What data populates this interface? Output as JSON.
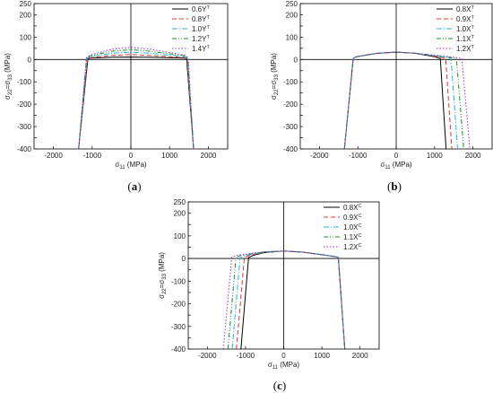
{
  "chart_data": [
    {
      "type": "line",
      "caption": "(a)",
      "xlabel": "σ11 (MPa)",
      "ylabel": "σ22=σ33 (MPa)",
      "xlim": [
        -2500,
        2500
      ],
      "ylim": [
        -400,
        250
      ],
      "xticks": [
        "-2000",
        "-1000",
        "0",
        "1000",
        "2000"
      ],
      "yticks": [
        "250",
        "200",
        "150",
        "100",
        "50",
        "0",
        "-50",
        "-100",
        "-150",
        "-200",
        "-250",
        "-300",
        "-350",
        "-400"
      ],
      "legend_position": "top-right",
      "series": [
        {
          "name": "0.6Y",
          "sup": "T",
          "color": "#000000",
          "dash": "",
          "points": [
            [
              -1350,
              -400
            ],
            [
              -1110,
              4
            ],
            [
              -1050,
              6
            ],
            [
              -500,
              10
            ],
            [
              0,
              11
            ],
            [
              500,
              10
            ],
            [
              1400,
              6
            ],
            [
              1440,
              4
            ],
            [
              1620,
              -400
            ]
          ]
        },
        {
          "name": "0.8Y",
          "sup": "T",
          "color": "#e8332a",
          "dash": "5,3",
          "points": [
            [
              -1350,
              -400
            ],
            [
              -1120,
              5
            ],
            [
              -1050,
              8
            ],
            [
              -500,
              18
            ],
            [
              0,
              22
            ],
            [
              500,
              18
            ],
            [
              1400,
              8
            ],
            [
              1450,
              5
            ],
            [
              1620,
              -400
            ]
          ]
        },
        {
          "name": "1.0Y",
          "sup": "T",
          "color": "#26b4e6",
          "dash": "6,2,1,2",
          "points": [
            [
              -1350,
              -400
            ],
            [
              -1130,
              6
            ],
            [
              -1050,
              12
            ],
            [
              -500,
              28
            ],
            [
              0,
              33
            ],
            [
              500,
              28
            ],
            [
              1400,
              12
            ],
            [
              1460,
              6
            ],
            [
              1620,
              -400
            ]
          ]
        },
        {
          "name": "1.2Y",
          "sup": "T",
          "color": "#1a8c2a",
          "dash": "5,2,1,2,1,2",
          "points": [
            [
              -1350,
              -400
            ],
            [
              -1140,
              7
            ],
            [
              -1050,
              16
            ],
            [
              -500,
              37
            ],
            [
              0,
              44
            ],
            [
              500,
              37
            ],
            [
              1400,
              16
            ],
            [
              1470,
              7
            ],
            [
              1620,
              -400
            ]
          ]
        },
        {
          "name": "1.4Y",
          "sup": "T",
          "color": "#9b30d9",
          "dash": "1.5,2",
          "points": [
            [
              -1350,
              -400
            ],
            [
              -1150,
              8
            ],
            [
              -1050,
              20
            ],
            [
              -500,
              46
            ],
            [
              0,
              54
            ],
            [
              500,
              46
            ],
            [
              1400,
              20
            ],
            [
              1480,
              8
            ],
            [
              1620,
              -400
            ]
          ]
        }
      ]
    },
    {
      "type": "line",
      "caption": "(b)",
      "xlabel": "σ11 (MPa)",
      "ylabel": "σ22=σ33 (MPa)",
      "xlim": [
        -2500,
        2500
      ],
      "ylim": [
        -400,
        250
      ],
      "xticks": [
        "-2000",
        "-1000",
        "0",
        "1000",
        "2000"
      ],
      "yticks": [
        "250",
        "200",
        "150",
        "100",
        "50",
        "0",
        "-50",
        "-100",
        "-150",
        "-200",
        "-250",
        "-300",
        "-350",
        "-400"
      ],
      "legend_position": "top-right",
      "series": [
        {
          "name": "0.8X",
          "sup": "T",
          "color": "#000000",
          "dash": "",
          "points": [
            [
              -1350,
              -400
            ],
            [
              -1120,
              5
            ],
            [
              -1050,
              12
            ],
            [
              -500,
              28
            ],
            [
              0,
              33
            ],
            [
              500,
              28
            ],
            [
              1000,
              12
            ],
            [
              1150,
              5
            ],
            [
              1300,
              -400
            ]
          ]
        },
        {
          "name": "0.9X",
          "sup": "T",
          "color": "#e8332a",
          "dash": "5,3",
          "points": [
            [
              -1350,
              -400
            ],
            [
              -1120,
              5
            ],
            [
              -1050,
              12
            ],
            [
              -500,
              28
            ],
            [
              0,
              33
            ],
            [
              500,
              28
            ],
            [
              1100,
              12
            ],
            [
              1290,
              5
            ],
            [
              1450,
              -400
            ]
          ]
        },
        {
          "name": "1.0X",
          "sup": "T",
          "color": "#26b4e6",
          "dash": "6,2,1,2",
          "points": [
            [
              -1350,
              -400
            ],
            [
              -1120,
              5
            ],
            [
              -1050,
              12
            ],
            [
              -500,
              28
            ],
            [
              0,
              33
            ],
            [
              500,
              28
            ],
            [
              1200,
              12
            ],
            [
              1430,
              5
            ],
            [
              1600,
              -400
            ]
          ]
        },
        {
          "name": "1.1X",
          "sup": "T",
          "color": "#1a8c2a",
          "dash": "5,2,1,2,1,2",
          "points": [
            [
              -1350,
              -400
            ],
            [
              -1120,
              5
            ],
            [
              -1050,
              12
            ],
            [
              -500,
              28
            ],
            [
              0,
              33
            ],
            [
              500,
              28
            ],
            [
              1300,
              12
            ],
            [
              1570,
              5
            ],
            [
              1760,
              -400
            ]
          ]
        },
        {
          "name": "1.2X",
          "sup": "T",
          "color": "#9b30d9",
          "dash": "1.5,2",
          "points": [
            [
              -1350,
              -400
            ],
            [
              -1120,
              5
            ],
            [
              -1050,
              12
            ],
            [
              -500,
              28
            ],
            [
              0,
              33
            ],
            [
              500,
              28
            ],
            [
              1400,
              12
            ],
            [
              1710,
              5
            ],
            [
              1920,
              -400
            ]
          ]
        }
      ]
    },
    {
      "type": "line",
      "caption": "(c)",
      "xlabel": "σ11 (MPa)",
      "ylabel": "σ22=σ33 (MPa)",
      "xlim": [
        -2500,
        2500
      ],
      "ylim": [
        -400,
        250
      ],
      "xticks": [
        "-2000",
        "-1000",
        "0",
        "1000",
        "2000"
      ],
      "yticks": [
        "250",
        "200",
        "150",
        "100",
        "50",
        "0",
        "-50",
        "-100",
        "-150",
        "-200",
        "-250",
        "-300",
        "-350",
        "-400"
      ],
      "legend_position": "top-right",
      "series": [
        {
          "name": "0.8X",
          "sup": "C",
          "color": "#000000",
          "dash": "",
          "points": [
            [
              -1120,
              -400
            ],
            [
              -920,
              4
            ],
            [
              -800,
              14
            ],
            [
              -500,
              26
            ],
            [
              0,
              33
            ],
            [
              500,
              28
            ],
            [
              1200,
              12
            ],
            [
              1430,
              5
            ],
            [
              1600,
              -400
            ]
          ]
        },
        {
          "name": "0.9X",
          "sup": "C",
          "color": "#e8332a",
          "dash": "5,3",
          "points": [
            [
              -1240,
              -400
            ],
            [
              -1030,
              4
            ],
            [
              -900,
              14
            ],
            [
              -500,
              27
            ],
            [
              0,
              33
            ],
            [
              500,
              28
            ],
            [
              1200,
              12
            ],
            [
              1430,
              5
            ],
            [
              1600,
              -400
            ]
          ]
        },
        {
          "name": "1.0X",
          "sup": "C",
          "color": "#26b4e6",
          "dash": "6,2,1,2",
          "points": [
            [
              -1350,
              -400
            ],
            [
              -1140,
              5
            ],
            [
              -1000,
              14
            ],
            [
              -500,
              28
            ],
            [
              0,
              33
            ],
            [
              500,
              28
            ],
            [
              1200,
              12
            ],
            [
              1430,
              5
            ],
            [
              1600,
              -400
            ]
          ]
        },
        {
          "name": "1.1X",
          "sup": "C",
          "color": "#1a8c2a",
          "dash": "5,2,1,2,1,2",
          "points": [
            [
              -1460,
              -400
            ],
            [
              -1250,
              5
            ],
            [
              -1100,
              15
            ],
            [
              -500,
              29
            ],
            [
              0,
              33
            ],
            [
              500,
              28
            ],
            [
              1200,
              12
            ],
            [
              1430,
              5
            ],
            [
              1600,
              -400
            ]
          ]
        },
        {
          "name": "1.2X",
          "sup": "C",
          "color": "#9b30d9",
          "dash": "1.5,2",
          "points": [
            [
              -1580,
              -400
            ],
            [
              -1360,
              6
            ],
            [
              -1200,
              15
            ],
            [
              -500,
              30
            ],
            [
              0,
              33
            ],
            [
              500,
              28
            ],
            [
              1200,
              12
            ],
            [
              1430,
              5
            ],
            [
              1600,
              -400
            ]
          ]
        }
      ]
    }
  ]
}
